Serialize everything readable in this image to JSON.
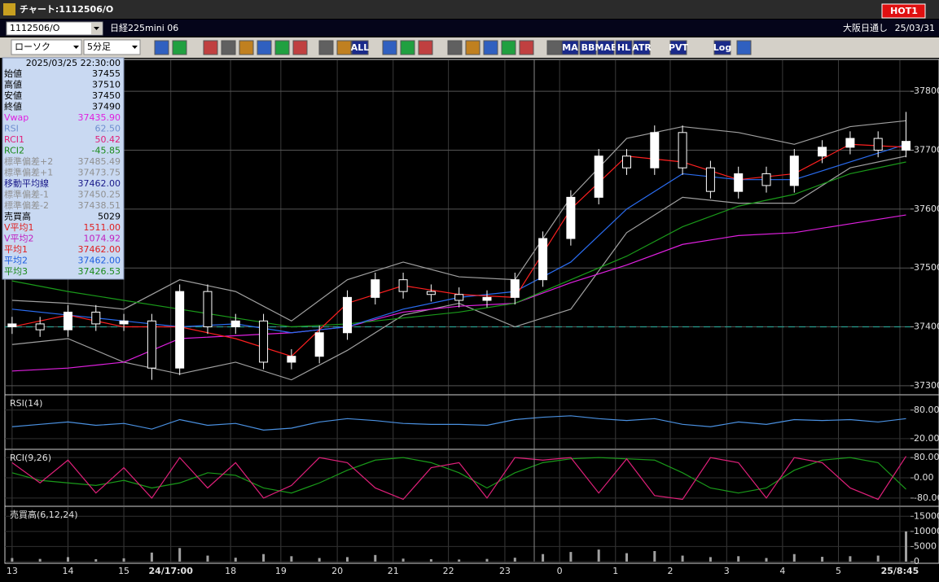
{
  "header": {
    "title": "チャート:1112506/O",
    "hot": "HOT1",
    "symbol": "1112506/O",
    "instrument": "日経225mini 06",
    "session": "大阪日通し",
    "date": "25/03/31",
    "chart_style": "ローソク",
    "interval": "5分足"
  },
  "toolbar": {
    "labels": [
      "ALL",
      "MA",
      "BB",
      "MAE",
      "HL",
      "ATR",
      "PVT",
      "Log"
    ]
  },
  "info_panel": {
    "timestamp": "2025/03/25 22:30:00",
    "rows": [
      {
        "label": "始値",
        "value": "37455",
        "color": "#000000"
      },
      {
        "label": "高値",
        "value": "37510",
        "color": "#000000"
      },
      {
        "label": "安値",
        "value": "37450",
        "color": "#000000"
      },
      {
        "label": "終値",
        "value": "37490",
        "color": "#000000"
      },
      {
        "label": "Vwap",
        "value": "37435.90",
        "color": "#e020e0"
      },
      {
        "label": "RSI",
        "value": "62.50",
        "color": "#6f8fcf"
      },
      {
        "label": "RCI1",
        "value": "50.42",
        "color": "#e0207a"
      },
      {
        "label": "RCI2",
        "value": "-45.85",
        "color": "#1a8a1a"
      },
      {
        "label": "標準偏差+2",
        "value": "37485.49",
        "color": "#909090"
      },
      {
        "label": "標準偏差+1",
        "value": "37473.75",
        "color": "#909090"
      },
      {
        "label": "移動平均線",
        "value": "37462.00",
        "color": "#1a1a8a"
      },
      {
        "label": "標準偏差-1",
        "value": "37450.25",
        "color": "#909090"
      },
      {
        "label": "標準偏差-2",
        "value": "37438.51",
        "color": "#909090"
      },
      {
        "label": "売買高",
        "value": "5029",
        "color": "#000000"
      },
      {
        "label": "V平均1",
        "value": "1511.00",
        "color": "#e02020"
      },
      {
        "label": "V平均2",
        "value": "1074.92",
        "color": "#c020c0"
      },
      {
        "label": "平均1",
        "value": "37462.00",
        "color": "#e02020"
      },
      {
        "label": "平均2",
        "value": "37462.00",
        "color": "#2060e0"
      },
      {
        "label": "平均3",
        "value": "37426.53",
        "color": "#1a8a1a"
      }
    ]
  },
  "chart_data": [
    {
      "type": "candlestick",
      "xlim": [
        -0.1,
        16.08
      ],
      "xticks": [
        {
          "value": 0,
          "label": "13"
        },
        {
          "value": 1,
          "label": "14"
        },
        {
          "value": 2,
          "label": "15"
        },
        {
          "value": 2.84,
          "label": "24/17:00",
          "bold": true
        },
        {
          "value": 3.91,
          "label": "18"
        },
        {
          "value": 4.81,
          "label": "19"
        },
        {
          "value": 5.82,
          "label": "20"
        },
        {
          "value": 6.82,
          "label": "21"
        },
        {
          "value": 7.81,
          "label": "22"
        },
        {
          "value": 8.82,
          "label": "23"
        },
        {
          "value": 9.8,
          "label": "0"
        },
        {
          "value": 10.8,
          "label": "1"
        },
        {
          "value": 11.78,
          "label": "2"
        },
        {
          "value": 12.79,
          "label": "3"
        },
        {
          "value": 13.79,
          "label": "4"
        },
        {
          "value": 14.79,
          "label": "5"
        },
        {
          "value": 15.89,
          "label": "25/8:45",
          "bold": true
        }
      ],
      "ylim": [
        37286,
        37850
      ],
      "yticks": [
        37300,
        37400,
        37500,
        37600,
        37700,
        37800
      ],
      "up_color": "#ffffff",
      "down_color": "#000000",
      "wick_color": "#ffffff",
      "x": [
        0,
        0.5,
        1,
        1.5,
        2,
        2.5,
        3,
        3.5,
        4,
        4.5,
        5,
        5.5,
        6,
        6.5,
        7,
        7.5,
        8,
        8.5,
        9,
        9.5,
        10,
        10.5,
        11,
        11.5,
        12,
        12.5,
        13,
        13.5,
        14,
        14.5,
        15,
        15.5,
        16
      ],
      "open": [
        37400,
        37405,
        37395,
        37425,
        37405,
        37410,
        37330,
        37460,
        37400,
        37410,
        37340,
        37350,
        37390,
        37450,
        37480,
        37460,
        37455,
        37445,
        37450,
        37480,
        37550,
        37620,
        37690,
        37670,
        37730,
        37670,
        37630,
        37660,
        37640,
        37690,
        37705,
        37720,
        37700
      ],
      "high": [
        37417,
        37417,
        37437,
        37437,
        37422,
        37422,
        37472,
        37472,
        37422,
        37422,
        37362,
        37402,
        37462,
        37492,
        37492,
        37472,
        37467,
        37462,
        37492,
        37562,
        37632,
        37702,
        37702,
        37742,
        37742,
        37682,
        37672,
        37672,
        37702,
        37717,
        37732,
        37732,
        37765
      ],
      "low": [
        37388,
        37383,
        37383,
        37393,
        37393,
        37310,
        37318,
        37388,
        37388,
        37328,
        37328,
        37338,
        37378,
        37438,
        37448,
        37443,
        37433,
        37433,
        37438,
        37468,
        37538,
        37608,
        37658,
        37658,
        37658,
        37618,
        37618,
        37628,
        37628,
        37678,
        37693,
        37688,
        37688
      ],
      "close": [
        37405,
        37395,
        37425,
        37405,
        37410,
        37330,
        37460,
        37400,
        37410,
        37340,
        37350,
        37390,
        37450,
        37480,
        37460,
        37455,
        37445,
        37450,
        37480,
        37550,
        37620,
        37690,
        37670,
        37730,
        37670,
        37630,
        37660,
        37640,
        37690,
        37705,
        37720,
        37700,
        37715
      ],
      "reference_line": {
        "value": 37400,
        "color": "#2a9d8f"
      },
      "series": [
        {
          "color": "#a0a0a0",
          "x": [
            0,
            1,
            2,
            3,
            4,
            5,
            6,
            7,
            8,
            9,
            10,
            11,
            12,
            13,
            14,
            15,
            16
          ],
          "values": [
            37445,
            37440,
            37430,
            37480,
            37460,
            37410,
            37480,
            37510,
            37485,
            37480,
            37620,
            37720,
            37740,
            37730,
            37710,
            37740,
            37750
          ]
        },
        {
          "color": "#a0a0a0",
          "x": [
            0,
            1,
            2,
            3,
            4,
            5,
            6,
            7,
            8,
            9,
            10,
            11,
            12,
            13,
            14,
            15,
            16
          ],
          "values": [
            37370,
            37380,
            37340,
            37320,
            37340,
            37310,
            37360,
            37420,
            37440,
            37400,
            37430,
            37560,
            37620,
            37610,
            37610,
            37670,
            37690
          ]
        },
        {
          "color": "#e020e0",
          "x": [
            0,
            1,
            2,
            3,
            4,
            5,
            6,
            7,
            8,
            9,
            10,
            11,
            12,
            13,
            14,
            15,
            16
          ],
          "values": [
            37325,
            37330,
            37340,
            37380,
            37385,
            37390,
            37400,
            37425,
            37435,
            37440,
            37475,
            37505,
            37540,
            37555,
            37560,
            37575,
            37590
          ]
        },
        {
          "color": "#1a9a1a",
          "x": [
            0,
            1,
            2,
            3,
            4,
            5,
            6,
            7,
            8,
            9,
            10,
            11,
            12,
            13,
            14,
            15,
            16
          ],
          "values": [
            37478,
            37460,
            37445,
            37430,
            37415,
            37400,
            37405,
            37415,
            37425,
            37440,
            37480,
            37520,
            37570,
            37605,
            37625,
            37660,
            37680
          ]
        },
        {
          "color": "#2a6cf0",
          "x": [
            0,
            1,
            2,
            3,
            4,
            5,
            6,
            7,
            8,
            9,
            10,
            11,
            12,
            13,
            14,
            15,
            16
          ],
          "values": [
            37430,
            37420,
            37410,
            37400,
            37405,
            37390,
            37400,
            37430,
            37450,
            37460,
            37510,
            37600,
            37660,
            37650,
            37650,
            37680,
            37710
          ]
        },
        {
          "color": "#ff2020",
          "x": [
            0,
            1,
            2,
            3,
            4,
            5,
            6,
            7,
            8,
            9,
            10,
            11,
            12,
            13,
            14,
            15,
            16
          ],
          "values": [
            37400,
            37420,
            37400,
            37400,
            37380,
            37350,
            37440,
            37470,
            37455,
            37450,
            37600,
            37690,
            37680,
            37650,
            37660,
            37710,
            37705
          ]
        }
      ]
    },
    {
      "type": "line",
      "title": "RSI(14)",
      "ylim": [
        1,
        107
      ],
      "yticks": [
        {
          "value": 20,
          "label": "20.00"
        },
        {
          "value": 80,
          "label": "80.00"
        }
      ],
      "series": [
        {
          "color": "#4a90e0",
          "x": [
            0,
            0.5,
            1,
            1.5,
            2,
            2.5,
            3,
            3.5,
            4,
            4.5,
            5,
            5.5,
            6,
            6.5,
            7,
            7.5,
            8,
            8.5,
            9,
            9.5,
            10,
            10.5,
            11,
            11.5,
            12,
            12.5,
            13,
            13.5,
            14,
            14.5,
            15,
            15.5,
            16
          ],
          "values": [
            45,
            50,
            55,
            48,
            52,
            40,
            60,
            48,
            52,
            38,
            42,
            55,
            62,
            58,
            52,
            50,
            50,
            48,
            60,
            65,
            68,
            62,
            58,
            62,
            50,
            45,
            55,
            50,
            60,
            58,
            60,
            55,
            62
          ]
        }
      ]
    },
    {
      "type": "line",
      "title": "RCI(9,26)",
      "ylim": [
        -106,
        103
      ],
      "yticks": [
        {
          "value": -80,
          "label": "-80.00"
        },
        {
          "value": 0,
          "label": "0.00"
        },
        {
          "value": 80,
          "label": "80.00"
        }
      ],
      "series": [
        {
          "color": "#1a9a1a",
          "x": [
            0,
            0.5,
            1,
            1.5,
            2,
            2.5,
            3,
            3.5,
            4,
            4.5,
            5,
            5.5,
            6,
            6.5,
            7,
            7.5,
            8,
            8.5,
            9,
            9.5,
            10,
            10.5,
            11,
            11.5,
            12,
            12.5,
            13,
            13.5,
            14,
            14.5,
            15,
            15.5,
            16
          ],
          "values": [
            20,
            -10,
            -20,
            -30,
            -10,
            -40,
            -20,
            20,
            10,
            -40,
            -60,
            -20,
            30,
            70,
            80,
            60,
            20,
            -40,
            20,
            60,
            75,
            80,
            75,
            70,
            20,
            -40,
            -60,
            -40,
            30,
            70,
            80,
            60,
            -45
          ]
        },
        {
          "color": "#e0207a",
          "x": [
            0,
            0.5,
            1,
            1.5,
            2,
            2.5,
            3,
            3.5,
            4,
            4.5,
            5,
            5.5,
            6,
            6.5,
            7,
            7.5,
            8,
            8.5,
            9,
            9.5,
            10,
            10.5,
            11,
            11.5,
            12,
            12.5,
            13,
            13.5,
            14,
            14.5,
            15,
            15.5,
            16
          ],
          "values": [
            60,
            -20,
            70,
            -60,
            40,
            -80,
            80,
            -40,
            60,
            -80,
            -30,
            80,
            60,
            -40,
            -85,
            40,
            60,
            -80,
            80,
            70,
            80,
            -60,
            75,
            -70,
            -85,
            80,
            60,
            -80,
            80,
            60,
            -40,
            -85,
            85
          ]
        }
      ]
    },
    {
      "type": "bar",
      "title": "売買高(6,12,24)",
      "ylim": [
        0,
        17500
      ],
      "yticks": [
        0,
        5000,
        10000,
        15000
      ],
      "color": "#a0a0a0",
      "x": [
        0,
        0.5,
        1,
        1.5,
        2,
        2.5,
        3,
        3.5,
        4,
        4.5,
        5,
        5.5,
        6,
        6.5,
        7,
        7.5,
        8,
        8.5,
        9,
        9.5,
        10,
        10.5,
        11,
        11.5,
        12,
        12.5,
        13,
        13.5,
        14,
        14.5,
        15,
        15.5,
        16
      ],
      "values": [
        1200,
        900,
        1500,
        800,
        1100,
        3000,
        4500,
        2000,
        1300,
        2500,
        1800,
        1200,
        1500,
        2200,
        1000,
        800,
        700,
        900,
        1300,
        2500,
        3200,
        4000,
        2800,
        3500,
        2000,
        1500,
        1800,
        1200,
        2500,
        1600,
        1800,
        2000,
        10000
      ]
    }
  ]
}
